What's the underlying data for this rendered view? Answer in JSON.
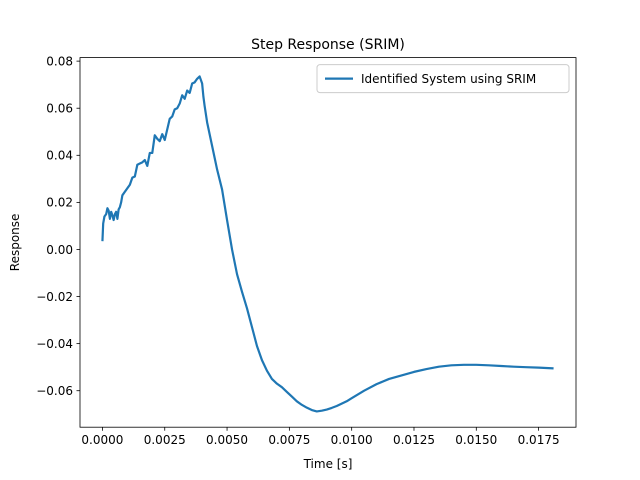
{
  "chart_data": {
    "type": "line",
    "title": "Step Response (SRIM)",
    "xlabel": "Time [s]",
    "ylabel": "Response",
    "xlim": [
      -0.0009,
      0.019
    ],
    "ylim": [
      -0.0755,
      0.0815
    ],
    "x_ticks": [
      0,
      0.0025,
      0.005,
      0.0075,
      0.01,
      0.0125,
      0.015,
      0.0175
    ],
    "x_tick_labels": [
      "0.0000",
      "0.0025",
      "0.0050",
      "0.0075",
      "0.0100",
      "0.0125",
      "0.0150",
      "0.0175"
    ],
    "y_ticks": [
      -0.06,
      -0.04,
      -0.02,
      0,
      0.02,
      0.04,
      0.06,
      0.08
    ],
    "y_tick_labels": [
      "−0.06",
      "−0.04",
      "−0.02",
      "0.00",
      "0.02",
      "0.04",
      "0.06",
      "0.08"
    ],
    "grid": false,
    "legend_position": "top-right",
    "series": [
      {
        "name": "Identified System using SRIM",
        "color": "#1f77b4",
        "x": [
          0,
          3e-05,
          8e-05,
          0.00015,
          0.0002,
          0.00025,
          0.0003,
          0.00035,
          0.0004,
          0.00045,
          0.0005,
          0.00055,
          0.0006,
          0.00065,
          0.0007,
          0.00075,
          0.0008,
          0.0009,
          0.001,
          0.0011,
          0.0012,
          0.0013,
          0.0014,
          0.0015,
          0.0016,
          0.0017,
          0.0018,
          0.0019,
          0.002,
          0.0021,
          0.0022,
          0.0023,
          0.0024,
          0.0025,
          0.0026,
          0.0027,
          0.0028,
          0.0029,
          0.003,
          0.0031,
          0.0032,
          0.0033,
          0.0034,
          0.0035,
          0.0036,
          0.0037,
          0.0038,
          0.0039,
          0.004,
          0.00405,
          0.0041,
          0.0042,
          0.0043,
          0.0044,
          0.0045,
          0.0046,
          0.0048,
          0.005,
          0.0052,
          0.0054,
          0.0056,
          0.0058,
          0.006,
          0.0062,
          0.0064,
          0.0066,
          0.0068,
          0.007,
          0.0072,
          0.0074,
          0.0076,
          0.0078,
          0.008,
          0.0082,
          0.0084,
          0.0086,
          0.0088,
          0.009,
          0.0092,
          0.0094,
          0.0096,
          0.0098,
          0.01,
          0.0105,
          0.011,
          0.0115,
          0.012,
          0.0125,
          0.013,
          0.0135,
          0.014,
          0.0145,
          0.015,
          0.0155,
          0.016,
          0.0165,
          0.017,
          0.0175,
          0.0181
        ],
        "values": [
          0.0035,
          0.011,
          0.014,
          0.015,
          0.0175,
          0.0165,
          0.013,
          0.016,
          0.0145,
          0.0125,
          0.015,
          0.016,
          0.013,
          0.017,
          0.018,
          0.02,
          0.023,
          0.0245,
          0.026,
          0.0275,
          0.0305,
          0.031,
          0.036,
          0.0365,
          0.037,
          0.038,
          0.0355,
          0.041,
          0.041,
          0.0485,
          0.047,
          0.046,
          0.049,
          0.0465,
          0.051,
          0.0555,
          0.0565,
          0.0595,
          0.06,
          0.062,
          0.0655,
          0.064,
          0.0675,
          0.0665,
          0.0705,
          0.071,
          0.0725,
          0.0735,
          0.0705,
          0.065,
          0.061,
          0.054,
          0.049,
          0.044,
          0.039,
          0.034,
          0.0255,
          0.0125,
          0.0,
          -0.0105,
          -0.018,
          -0.025,
          -0.033,
          -0.041,
          -0.047,
          -0.0515,
          -0.055,
          -0.057,
          -0.0585,
          -0.0605,
          -0.0625,
          -0.0645,
          -0.066,
          -0.0672,
          -0.0682,
          -0.0688,
          -0.0685,
          -0.068,
          -0.0673,
          -0.0665,
          -0.0655,
          -0.0645,
          -0.0632,
          -0.06,
          -0.0572,
          -0.055,
          -0.0535,
          -0.052,
          -0.0508,
          -0.0498,
          -0.0492,
          -0.049,
          -0.049,
          -0.0492,
          -0.0495,
          -0.0498,
          -0.05,
          -0.0502,
          -0.0505
        ]
      }
    ]
  }
}
